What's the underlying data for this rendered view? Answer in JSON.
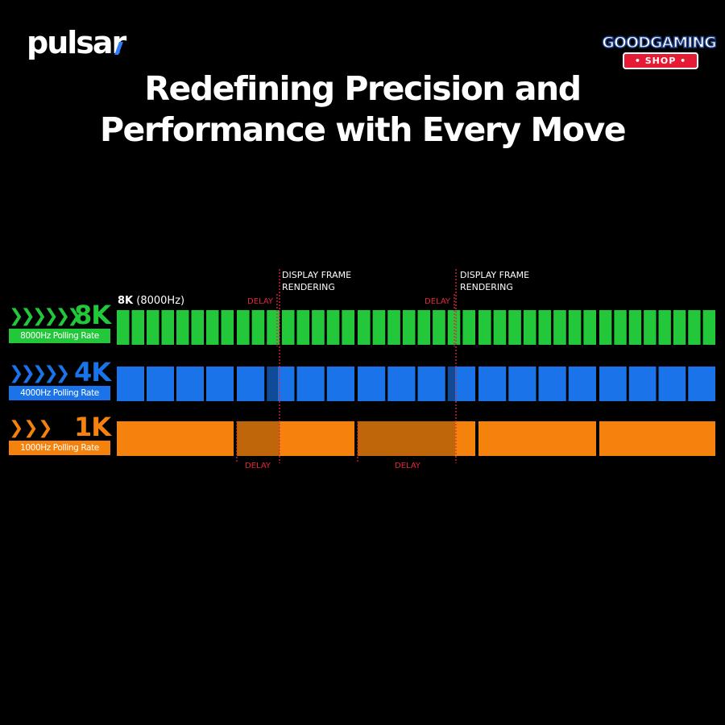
{
  "brand": {
    "logo_text": "pulsar"
  },
  "shop_badge": {
    "top": "GOODGAMING",
    "bottom": "• SHOP •"
  },
  "headline": {
    "line1": "Redefining Precision and",
    "line2": "Performance with Every Move"
  },
  "rates": [
    {
      "id": "8k",
      "arrows": "❯❯❯❯❯❯",
      "big": "8K",
      "pill": "8000Hz Polling Rate",
      "color": "#22c83a"
    },
    {
      "id": "4k",
      "arrows": "❯❯❯❯❯",
      "big": "4K",
      "pill": "4000Hz Polling Rate",
      "color": "#1a73e8"
    },
    {
      "id": "1k",
      "arrows": "❯ ❯ ❯",
      "big": "1K",
      "pill": "1000Hz Polling Rate",
      "color": "#f5820d"
    }
  ],
  "caption": {
    "bold": "8K",
    "rest": " (8000Hz)"
  },
  "frame_labels": [
    {
      "line1": "DISPLAY FRAME",
      "line2": "RENDERING"
    },
    {
      "line1": "DISPLAY FRAME",
      "line2": "RENDERING"
    }
  ],
  "delay_label": "DELAY",
  "colors": {
    "green": "#22c83a",
    "blue": "#1a73e8",
    "orange": "#f5820d",
    "delay_red": "#e0283a"
  }
}
